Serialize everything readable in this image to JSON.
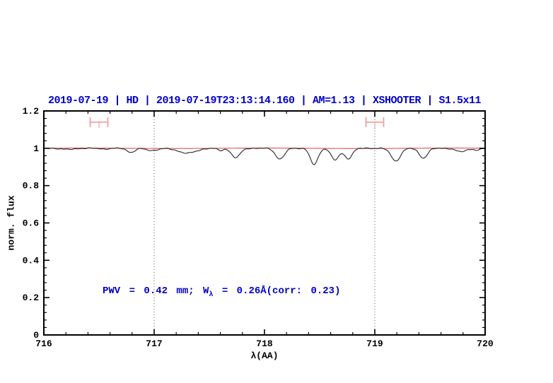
{
  "chart_data": {
    "type": "line",
    "title": "2019-07-19 | HD | 2019-07-19T23:13:14.160 | AM=1.13 | XSHOOTER | S1.5x11",
    "title_color": "#0000cc",
    "xlabel": "λ(AA)",
    "ylabel": "norm. flux",
    "xlim": [
      716,
      720
    ],
    "ylim": [
      0,
      1.2
    ],
    "x_ticks": {
      "major": [
        716,
        717,
        718,
        719,
        720
      ],
      "labels": [
        "716",
        "717",
        "718",
        "719",
        "720"
      ],
      "minor_step": 0.2
    },
    "y_ticks": {
      "major": [
        0,
        0.2,
        0.4,
        0.6,
        0.8,
        1.0,
        1.2
      ],
      "labels": [
        "0",
        "0.2",
        "0.4",
        "0.6",
        "0.8",
        "1",
        "1.2"
      ],
      "minor_step": 0.04
    },
    "dotted_guides_x": [
      717,
      719
    ],
    "guide_color": "#555555",
    "axis_color": "#000000",
    "series": [
      {
        "name": "continuum-model",
        "color": "#e06060",
        "continuum": 1.0,
        "description": "flat red continuum line at norm. flux = 1.0"
      },
      {
        "name": "observed-spectrum",
        "color": "#262626",
        "continuum": 1.0,
        "absorption_features": [
          {
            "center": 716.22,
            "depth": 0.006,
            "sigma": 0.06
          },
          {
            "center": 716.55,
            "depth": 0.004,
            "sigma": 0.04
          },
          {
            "center": 716.79,
            "depth": 0.022,
            "sigma": 0.035
          },
          {
            "center": 716.98,
            "depth": 0.012,
            "sigma": 0.05
          },
          {
            "center": 717.3,
            "depth": 0.026,
            "sigma": 0.08
          },
          {
            "center": 717.6,
            "depth": 0.012,
            "sigma": 0.025
          },
          {
            "center": 717.74,
            "depth": 0.05,
            "sigma": 0.04
          },
          {
            "center": 718.14,
            "depth": 0.058,
            "sigma": 0.04
          },
          {
            "center": 718.45,
            "depth": 0.088,
            "sigma": 0.035
          },
          {
            "center": 718.64,
            "depth": 0.062,
            "sigma": 0.036
          },
          {
            "center": 718.76,
            "depth": 0.055,
            "sigma": 0.036
          },
          {
            "center": 719.19,
            "depth": 0.068,
            "sigma": 0.042
          },
          {
            "center": 719.44,
            "depth": 0.052,
            "sigma": 0.038
          },
          {
            "center": 719.78,
            "depth": 0.018,
            "sigma": 0.05
          },
          {
            "center": 719.93,
            "depth": 0.01,
            "sigma": 0.03
          }
        ]
      }
    ],
    "region_markers": [
      {
        "x": 716.5,
        "y": 1.14,
        "half_width": 0.08
      },
      {
        "x": 719.0,
        "y": 1.14,
        "half_width": 0.08
      }
    ],
    "marker_color": "#f2a0a0",
    "annotation": {
      "prefix": "PWV = 0.42 mm; W",
      "subscript": "λ",
      "suffix": " = 0.26Å(corr: 0.23)",
      "color": "#0000cc"
    }
  }
}
